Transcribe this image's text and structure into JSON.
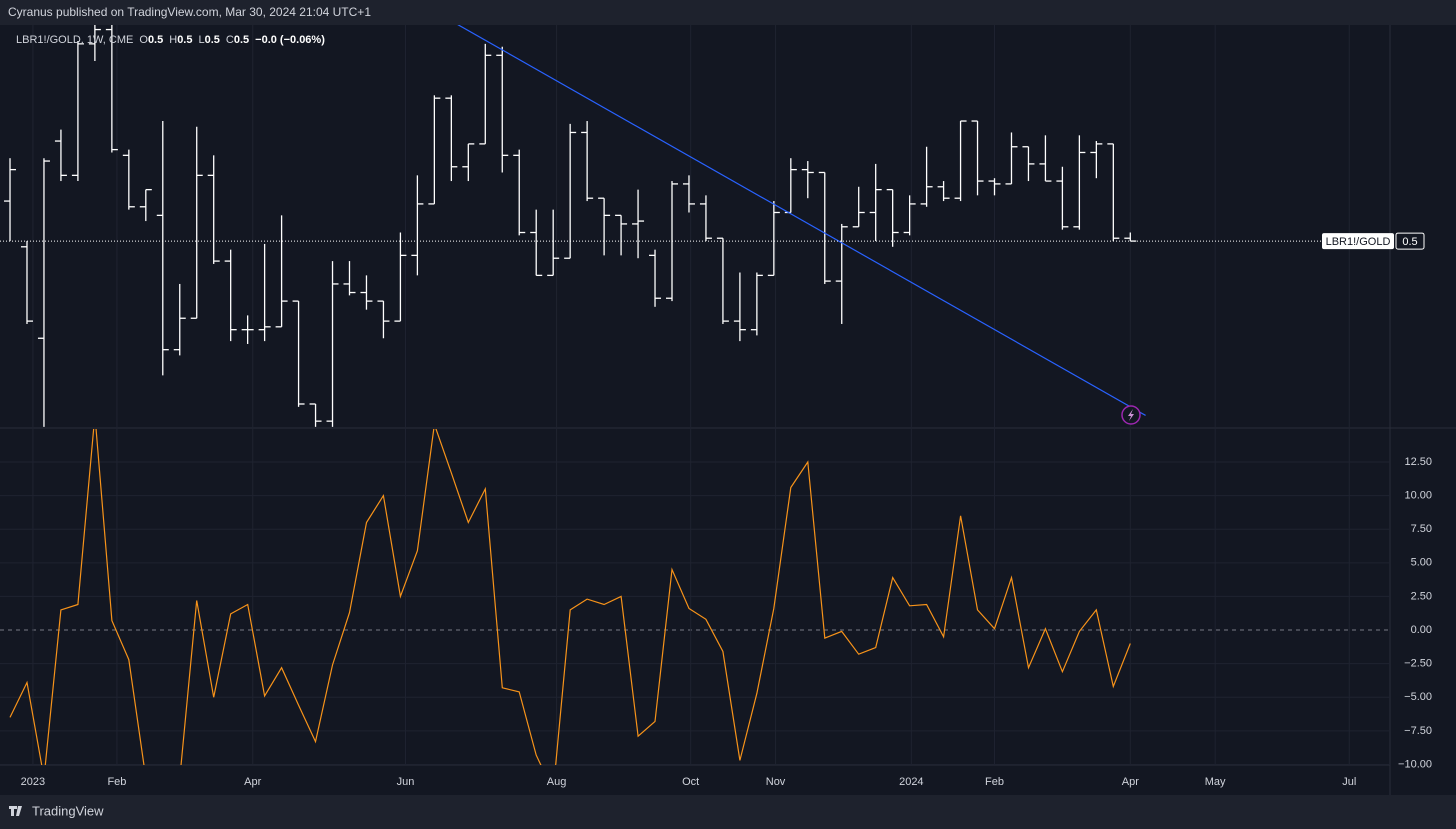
{
  "header": "Cyranus published on TradingView.com, Mar 30, 2024 21:04 UTC+1",
  "footer": "TradingView",
  "chart_data": [
    {
      "type": "ohlc",
      "legend": {
        "symbol": "LBR1!/GOLD, 1W, CME",
        "items": [
          {
            "key": "O",
            "value": "0.5"
          },
          {
            "key": "H",
            "value": "0.5"
          },
          {
            "key": "L",
            "value": "0.5"
          },
          {
            "key": "C",
            "value": "0.5"
          }
        ],
        "change": "−0.0 (−0.06%)"
      },
      "last_label": "LBR1!/GOLD",
      "last_value_label": "0.5",
      "color": "#ffffff",
      "trendline_color": "#2962ff",
      "open": [
        0.514,
        0.498,
        0.466,
        0.535,
        0.523,
        0.569,
        0.574,
        0.53,
        0.512,
        0.509,
        0.462,
        0.473,
        0.523,
        0.493,
        0.469,
        0.469,
        0.47,
        0.479,
        0.443,
        0.437,
        0.485,
        0.482,
        0.479,
        0.472,
        0.495,
        0.513,
        0.55,
        0.526,
        0.534,
        0.565,
        0.53,
        0.503,
        0.488,
        0.494,
        0.538,
        0.515,
        0.509,
        0.506,
        0.495,
        0.48,
        0.52,
        0.513,
        0.501,
        0.472,
        0.469,
        0.488,
        0.51,
        0.525,
        0.524,
        0.486,
        0.505,
        0.51,
        0.518,
        0.503,
        0.513,
        0.519,
        0.515,
        0.542,
        0.521,
        0.52,
        0.533,
        0.527,
        0.521,
        0.505,
        0.531,
        0.534,
        0.501
      ],
      "high": [
        0.529,
        0.5,
        0.529,
        0.539,
        0.57,
        0.576,
        0.576,
        0.532,
        0.518,
        0.542,
        0.485,
        0.54,
        0.53,
        0.497,
        0.474,
        0.499,
        0.509,
        0.479,
        0.443,
        0.493,
        0.493,
        0.488,
        0.479,
        0.503,
        0.523,
        0.551,
        0.551,
        0.534,
        0.569,
        0.568,
        0.532,
        0.511,
        0.511,
        0.541,
        0.542,
        0.515,
        0.509,
        0.518,
        0.497,
        0.521,
        0.523,
        0.516,
        0.501,
        0.489,
        0.489,
        0.514,
        0.529,
        0.528,
        0.524,
        0.506,
        0.519,
        0.527,
        0.518,
        0.516,
        0.533,
        0.521,
        0.542,
        0.542,
        0.522,
        0.538,
        0.533,
        0.537,
        0.526,
        0.537,
        0.535,
        0.534,
        0.503
      ],
      "low": [
        0.5,
        0.471,
        0.435,
        0.521,
        0.521,
        0.563,
        0.531,
        0.511,
        0.507,
        0.453,
        0.46,
        0.473,
        0.492,
        0.465,
        0.464,
        0.465,
        0.47,
        0.442,
        0.435,
        0.435,
        0.481,
        0.476,
        0.466,
        0.472,
        0.488,
        0.513,
        0.521,
        0.521,
        0.534,
        0.524,
        0.502,
        0.488,
        0.488,
        0.494,
        0.514,
        0.495,
        0.495,
        0.494,
        0.477,
        0.479,
        0.51,
        0.5,
        0.471,
        0.465,
        0.467,
        0.488,
        0.51,
        0.515,
        0.485,
        0.471,
        0.505,
        0.5,
        0.498,
        0.502,
        0.512,
        0.514,
        0.514,
        0.516,
        0.516,
        0.52,
        0.521,
        0.521,
        0.504,
        0.504,
        0.522,
        0.5,
        0.5
      ],
      "close": [
        0.525,
        0.472,
        0.528,
        0.523,
        0.569,
        0.574,
        0.532,
        0.512,
        0.518,
        0.462,
        0.473,
        0.523,
        0.493,
        0.469,
        0.469,
        0.47,
        0.479,
        0.443,
        0.437,
        0.485,
        0.482,
        0.479,
        0.472,
        0.495,
        0.513,
        0.55,
        0.526,
        0.534,
        0.565,
        0.53,
        0.503,
        0.488,
        0.494,
        0.538,
        0.515,
        0.509,
        0.506,
        0.507,
        0.48,
        0.52,
        0.513,
        0.501,
        0.472,
        0.469,
        0.488,
        0.51,
        0.525,
        0.524,
        0.486,
        0.505,
        0.51,
        0.518,
        0.503,
        0.513,
        0.519,
        0.515,
        0.542,
        0.521,
        0.52,
        0.533,
        0.527,
        0.521,
        0.505,
        0.531,
        0.534,
        0.501,
        0.5
      ],
      "trendline": {
        "x": [
          26.3,
          66.9
        ],
        "y": [
          0.576,
          0.439
        ]
      },
      "xlim": [
        -0.59,
        81.3
      ],
      "ylim": [
        0.4346,
        0.5756
      ]
    },
    {
      "type": "line",
      "color": "#f7931a",
      "values": [
        -6.5,
        -3.9,
        -11,
        1.5,
        1.9,
        16,
        0.7,
        -2.2,
        -11,
        -12,
        -11,
        2.2,
        -5.0,
        1.2,
        1.9,
        -4.9,
        -2.8,
        -5.6,
        -8.3,
        -2.6,
        1.3,
        8.0,
        10.0,
        2.5,
        5.9,
        15.3,
        11.7,
        8.0,
        10.5,
        -4.3,
        -4.6,
        -9.3,
        -12,
        1.5,
        2.3,
        1.9,
        2.5,
        -7.9,
        -6.8,
        4.5,
        1.6,
        0.8,
        -1.6,
        -9.7,
        -4.7,
        1.6,
        10.6,
        12.5,
        -0.6,
        -0.1,
        -1.8,
        -1.3,
        3.9,
        1.8,
        1.9,
        -0.5,
        8.5,
        1.5,
        0.1,
        3.9,
        -2.8,
        0.1,
        -3.1,
        -0.1,
        1.5,
        -4.2,
        -1.0
      ],
      "xlim": [
        -0.59,
        81.3
      ],
      "ylim": [
        -10.04,
        15.03
      ],
      "yticks": [
        {
          "value": 12.5,
          "label": "12.50"
        },
        {
          "value": 10,
          "label": "10.00"
        },
        {
          "value": 7.5,
          "label": "7.50"
        },
        {
          "value": 5,
          "label": "5.00"
        },
        {
          "value": 2.5,
          "label": "2.50"
        },
        {
          "value": 0,
          "label": "0.00"
        },
        {
          "value": -2.5,
          "label": "−2.50"
        },
        {
          "value": -5,
          "label": "−5.00"
        },
        {
          "value": -7.5,
          "label": "−7.50"
        },
        {
          "value": -10,
          "label": "−10.00"
        }
      ],
      "xticks": [
        {
          "value": 1.35,
          "label": "2023"
        },
        {
          "value": 6.3,
          "label": "Feb"
        },
        {
          "value": 14.3,
          "label": "Apr"
        },
        {
          "value": 23.3,
          "label": "Jun"
        },
        {
          "value": 32.2,
          "label": "Aug"
        },
        {
          "value": 40.1,
          "label": "Oct"
        },
        {
          "value": 45.1,
          "label": "Nov"
        },
        {
          "value": 53.1,
          "label": "2024"
        },
        {
          "value": 58.0,
          "label": "Feb"
        },
        {
          "value": 66.0,
          "label": "Apr"
        },
        {
          "value": 71.0,
          "label": "May"
        },
        {
          "value": 78.9,
          "label": "Jul"
        }
      ],
      "grid": true
    }
  ]
}
